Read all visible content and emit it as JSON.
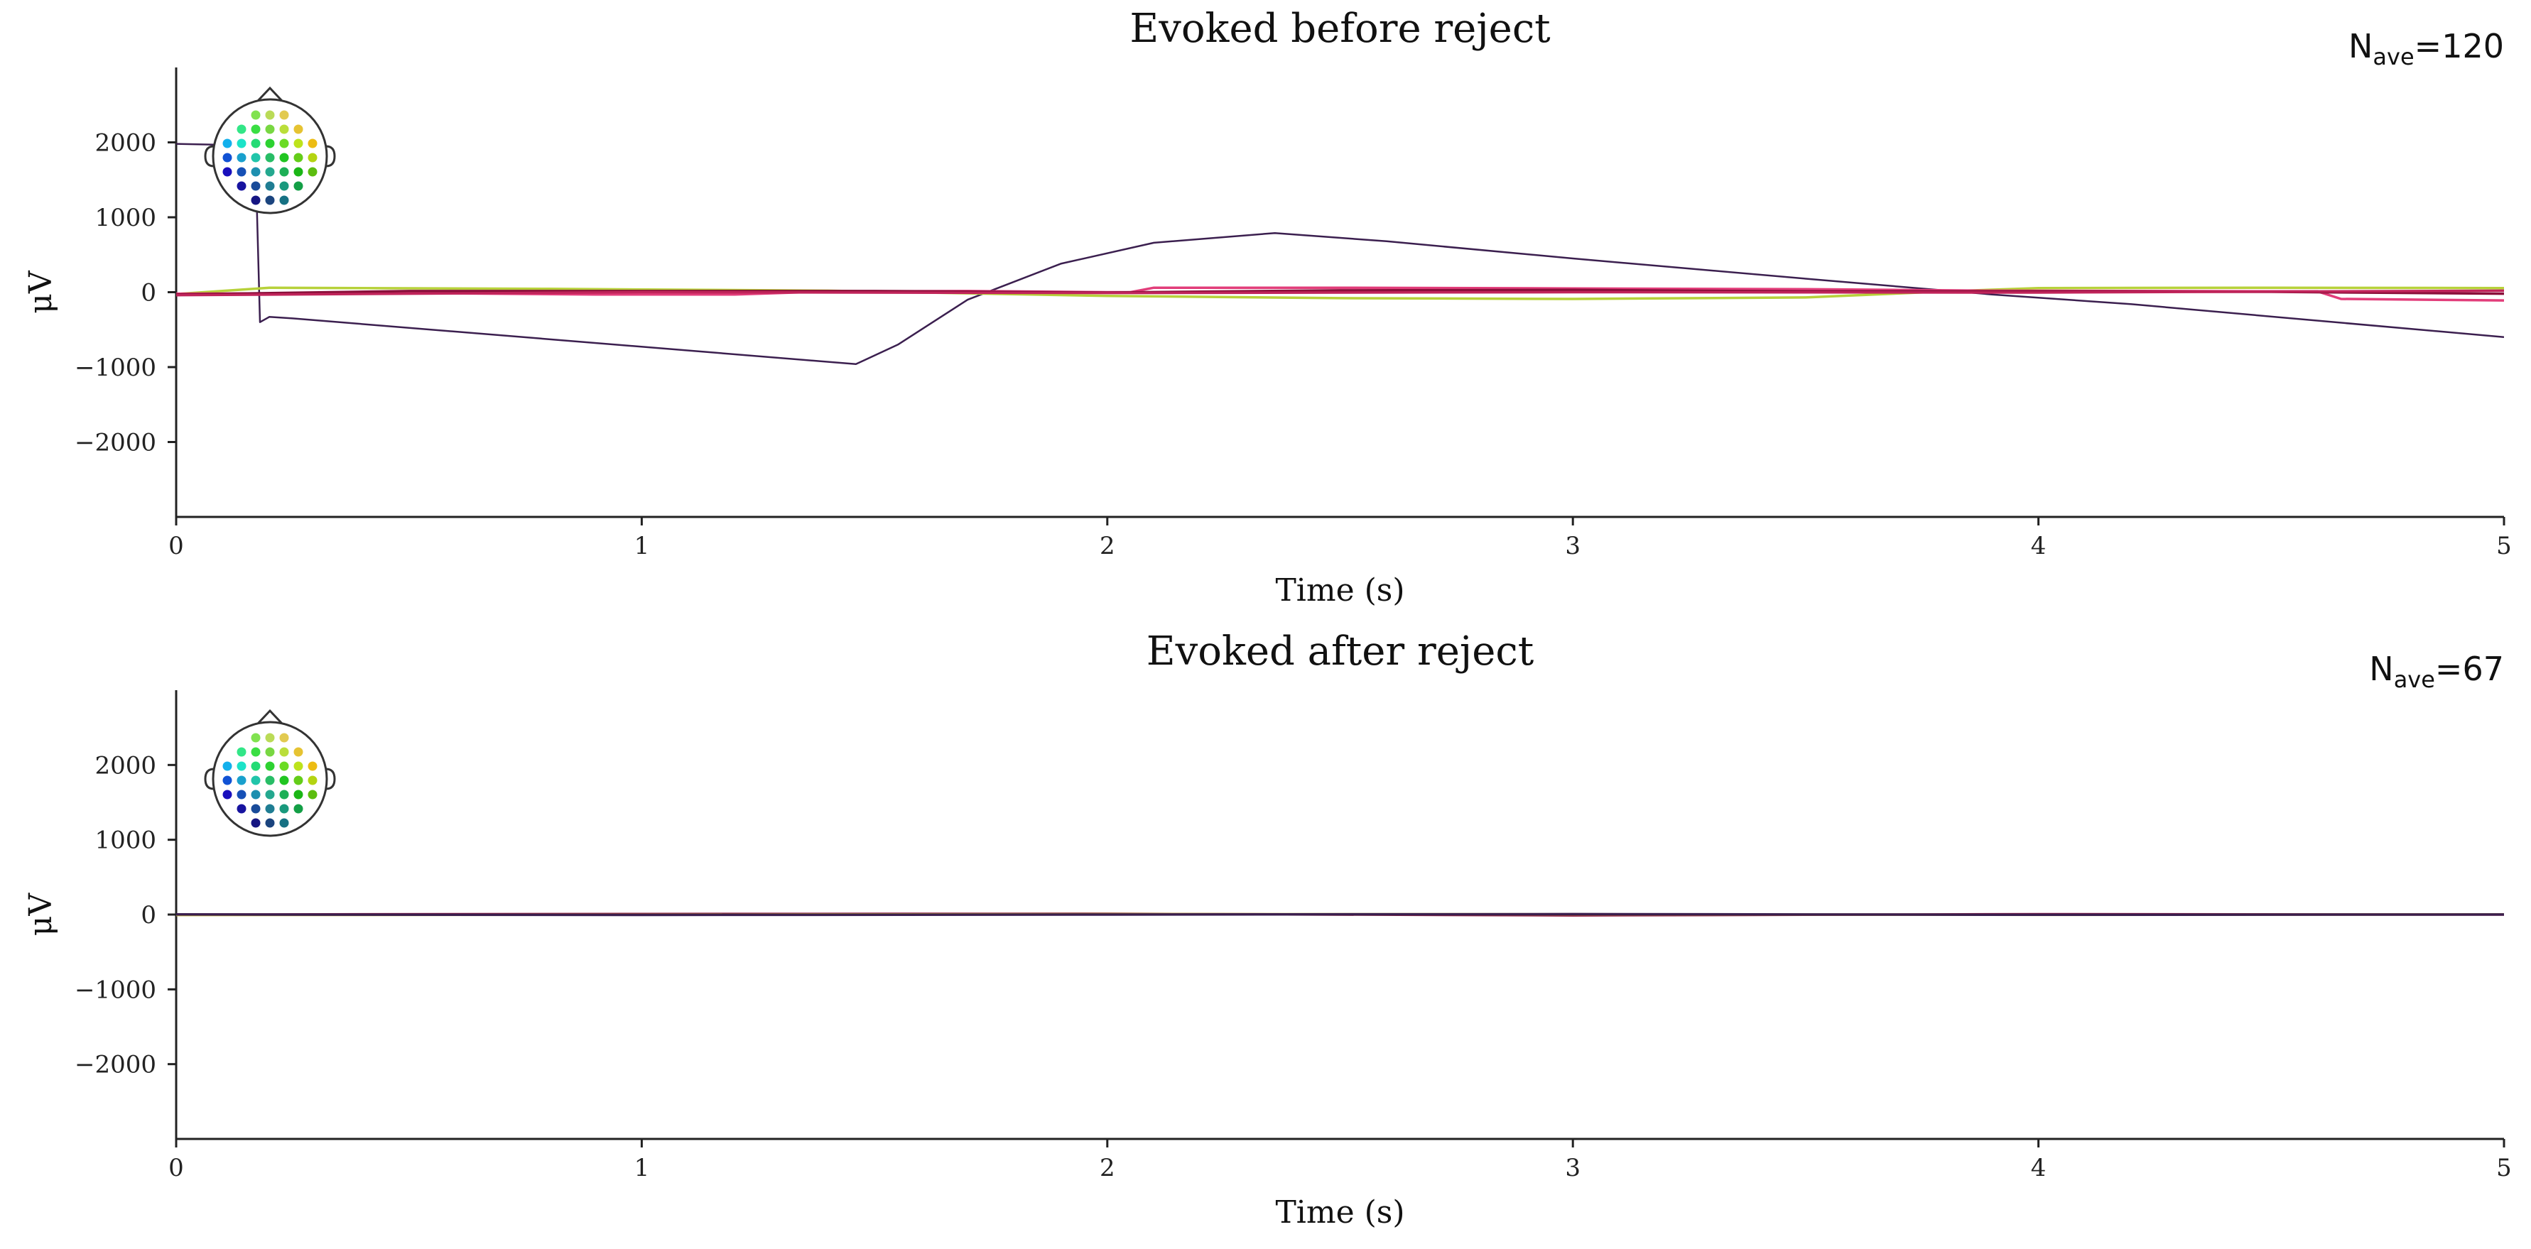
{
  "chart_data": [
    {
      "type": "line",
      "title": "Evoked before reject",
      "xlabel": "Time (s)",
      "ylabel": "μV",
      "xlim": [
        0,
        5
      ],
      "ylim": [
        -3000,
        3000
      ],
      "xticks": [
        0,
        1,
        2,
        3,
        4,
        5
      ],
      "xtick_labels": [
        "0",
        "1",
        "2",
        "3",
        "4",
        "5"
      ],
      "yticks": [
        -2000,
        -1000,
        0,
        1000,
        2000
      ],
      "ytick_labels": [
        "−2000",
        "−1000",
        "0",
        "1000",
        "2000"
      ],
      "nave_main": "N",
      "nave_sub": "ave",
      "nave_value": "=120",
      "grid": false,
      "legend": "sensor-head inset top-left",
      "series": [
        {
          "color": "#3b1f4f",
          "x": [
            0,
            0.16,
            0.17,
            0.18,
            0.2,
            0.25,
            1.46,
            1.55,
            1.7,
            1.9,
            2.1,
            2.36,
            2.6,
            3.0,
            3.5,
            3.9,
            4.2,
            5.0
          ],
          "y": [
            1980,
            1960,
            1900,
            -400,
            -330,
            -350,
            -960,
            -700,
            -100,
            380,
            660,
            790,
            680,
            450,
            180,
            -30,
            -160,
            -600
          ]
        },
        {
          "color": "#b7d13a",
          "x": [
            0,
            0.2,
            0.8,
            1.4,
            2.0,
            2.5,
            3.0,
            3.5,
            3.8,
            4.0,
            4.5,
            5.0
          ],
          "y": [
            -25,
            60,
            45,
            20,
            -50,
            -80,
            -90,
            -70,
            10,
            55,
            60,
            55
          ]
        },
        {
          "color": "#e23d7a",
          "x": [
            0,
            0.5,
            0.9,
            1.2,
            1.4,
            1.7,
            2.0,
            2.05,
            2.1,
            2.5,
            3.0,
            3.5,
            3.9,
            4.6,
            4.65,
            5.0
          ],
          "y": [
            -20,
            -10,
            -30,
            -30,
            10,
            15,
            0,
            0,
            60,
            60,
            50,
            40,
            20,
            10,
            -90,
            -110
          ]
        },
        {
          "color": "#8a0f3a",
          "x": [
            0,
            0.5,
            1.5,
            2.0,
            2.5,
            3.0,
            3.5,
            4.0,
            4.5,
            5.0
          ],
          "y": [
            -30,
            15,
            15,
            -5,
            25,
            30,
            10,
            10,
            5,
            -20
          ]
        },
        {
          "color": "#c0245a",
          "x": [
            0,
            1.0,
            2.0,
            3.0,
            4.0,
            5.0
          ],
          "y": [
            -40,
            0,
            -10,
            0,
            -5,
            20
          ]
        }
      ]
    },
    {
      "type": "line",
      "title": "Evoked after reject",
      "xlabel": "Time (s)",
      "ylabel": "μV",
      "xlim": [
        0,
        5
      ],
      "ylim": [
        -3000,
        3000
      ],
      "xticks": [
        0,
        1,
        2,
        3,
        4,
        5
      ],
      "xtick_labels": [
        "0",
        "1",
        "2",
        "3",
        "4",
        "5"
      ],
      "yticks": [
        -2000,
        -1000,
        0,
        1000,
        2000
      ],
      "ytick_labels": [
        "−2000",
        "−1000",
        "0",
        "1000",
        "2000"
      ],
      "nave_main": "N",
      "nave_sub": "ave",
      "nave_value": "=67",
      "grid": false,
      "legend": "sensor-head inset top-left",
      "series": [
        {
          "color": "#8a0f3a",
          "x": [
            0,
            1.0,
            2.0,
            3.0,
            4.0,
            5.0
          ],
          "y": [
            0,
            8,
            10,
            -10,
            5,
            0
          ]
        },
        {
          "color": "#c2b33a",
          "x": [
            0,
            1.0,
            2.0,
            3.0,
            4.0,
            5.0
          ],
          "y": [
            -6,
            -2,
            6,
            4,
            -4,
            2
          ]
        },
        {
          "color": "#3b1f4f",
          "x": [
            0,
            1.0,
            2.0,
            3.0,
            4.0,
            5.0
          ],
          "y": [
            2,
            -5,
            0,
            6,
            -3,
            1
          ]
        }
      ]
    }
  ]
}
